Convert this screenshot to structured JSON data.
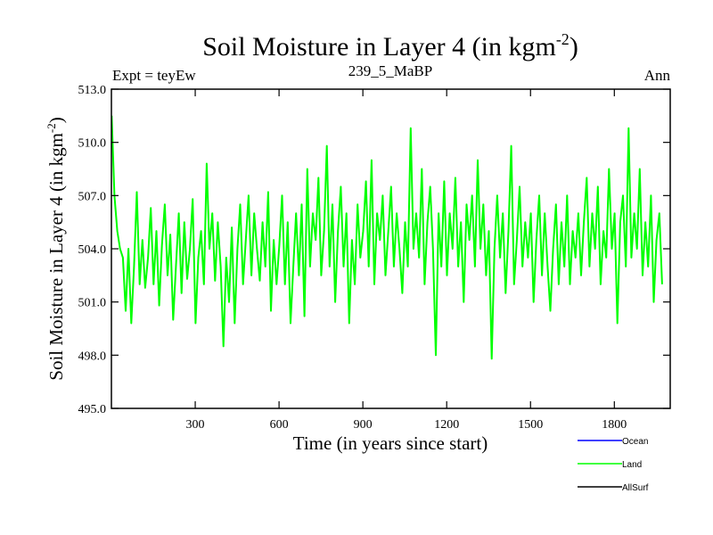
{
  "chart_data": {
    "type": "line",
    "title": "Soil Moisture in Layer 4 (in kgm",
    "title_sup": "-2",
    "title_close": ")",
    "subtitle_left": "Expt = teyEw",
    "subtitle_center": "239_5_MaBP",
    "subtitle_right": "Ann",
    "xlabel": "Time (in years since start)",
    "ylabel": "Soil Moisture in Layer 4 (in kgm",
    "ylabel_sup": "-2",
    "ylabel_close": ")",
    "xlim": [
      0,
      2000
    ],
    "ylim": [
      495.0,
      513.0
    ],
    "x_ticks": [
      300,
      600,
      900,
      1200,
      1500,
      1800
    ],
    "x_tick_labels": [
      "300",
      "600",
      "900",
      "1200",
      "1500",
      "1800"
    ],
    "y_ticks": [
      495.0,
      498.0,
      501.0,
      504.0,
      507.0,
      510.0,
      513.0
    ],
    "y_tick_labels": [
      "495.0",
      "498.0",
      "501.0",
      "504.0",
      "507.0",
      "510.0",
      "513.0"
    ],
    "series": [
      {
        "name": "Land",
        "color": "#00ff00",
        "x_start": 1,
        "x_step": 10,
        "values": [
          511.5,
          507.0,
          505.0,
          504.0,
          503.5,
          500.5,
          504.0,
          499.8,
          503.0,
          507.2,
          502.0,
          504.5,
          501.8,
          503.5,
          506.3,
          502.0,
          505.0,
          500.8,
          504.2,
          506.5,
          502.5,
          504.8,
          500.0,
          503.0,
          506.0,
          501.5,
          505.5,
          502.3,
          504.0,
          506.8,
          499.8,
          503.5,
          505.0,
          502.0,
          508.8,
          504.0,
          506.0,
          502.2,
          505.5,
          503.0,
          498.5,
          503.5,
          501.0,
          505.2,
          499.8,
          504.0,
          506.5,
          502.0,
          504.5,
          507.0,
          502.5,
          506.0,
          504.0,
          502.2,
          505.5,
          503.0,
          507.2,
          500.5,
          504.5,
          502.0,
          504.2,
          507.0,
          502.0,
          505.5,
          499.8,
          503.0,
          506.0,
          502.5,
          506.5,
          500.2,
          508.5,
          503.0,
          506.0,
          504.5,
          508.0,
          502.5,
          505.0,
          509.8,
          503.0,
          506.5,
          501.0,
          505.0,
          507.5,
          503.0,
          506.0,
          499.8,
          504.5,
          502.0,
          506.5,
          503.5,
          505.0,
          507.8,
          503.0,
          509.0,
          502.0,
          506.0,
          504.5,
          507.0,
          502.5,
          505.0,
          507.5,
          503.0,
          506.0,
          504.0,
          501.5,
          505.5,
          503.0,
          510.8,
          504.0,
          506.0,
          503.5,
          508.5,
          502.0,
          505.5,
          507.5,
          504.0,
          498.0,
          506.0,
          503.0,
          507.8,
          502.5,
          506.0,
          504.0,
          508.0,
          503.0,
          505.5,
          501.0,
          506.5,
          504.5,
          507.0,
          503.0,
          509.0,
          504.0,
          506.5,
          502.5,
          505.0,
          497.8,
          504.0,
          507.0,
          503.5,
          506.0,
          501.5,
          505.0,
          509.8,
          502.0,
          504.5,
          507.5,
          503.0,
          505.5,
          503.5,
          506.0,
          501.0,
          504.5,
          507.0,
          502.5,
          506.0,
          503.0,
          500.5,
          504.0,
          506.5,
          502.0,
          505.5,
          503.0,
          507.0,
          502.0,
          505.0,
          503.5,
          506.0,
          502.5,
          505.5,
          508.0,
          503.0,
          506.0,
          504.0,
          507.5,
          502.0,
          505.0,
          503.5,
          508.5,
          504.0,
          506.0,
          499.8,
          505.5,
          507.0,
          503.0,
          510.8,
          503.5,
          506.0,
          504.0,
          508.5,
          502.5,
          505.5,
          503.0,
          507.0,
          501.0,
          504.5,
          506.0,
          502.0
        ]
      }
    ],
    "legend": [
      {
        "name": "Ocean",
        "color": "#0000ff"
      },
      {
        "name": "Land",
        "color": "#00ff00"
      },
      {
        "name": "AllSurf",
        "color": "#000000"
      }
    ],
    "legend_position": "bottom-right",
    "grid": false
  }
}
